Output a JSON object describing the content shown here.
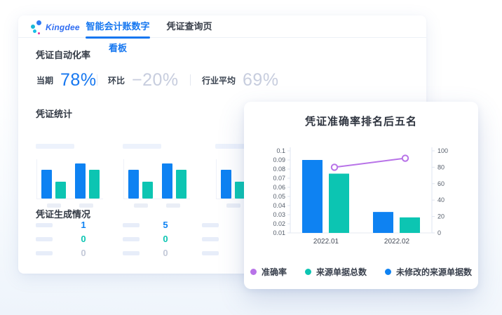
{
  "colors": {
    "blue": "#0e82f2",
    "teal": "#0cc5b2",
    "purple": "#b873e8",
    "muted_value": "#c7cdde",
    "accent": "#1677f0"
  },
  "header": {
    "logo_text": "Kingdee",
    "tabs": [
      {
        "label": "智能会计账数字看板",
        "active": true
      },
      {
        "label": "凭证查询页",
        "active": false
      }
    ]
  },
  "automation": {
    "title": "凭证自动化率",
    "stats": [
      {
        "label": "当期",
        "value": "78%",
        "emphasis": "primary"
      },
      {
        "label": "环比",
        "value": "−20%",
        "emphasis": "muted"
      },
      {
        "label": "行业平均",
        "value": "69%",
        "emphasis": "muted"
      }
    ]
  },
  "voucher_stats": {
    "title": "凭证统计",
    "mini_charts": [
      {
        "bars": [
          41,
          24,
          50,
          41
        ]
      },
      {
        "bars": [
          41,
          24,
          50,
          41
        ]
      },
      {
        "bars": [
          41,
          24,
          50,
          41
        ]
      }
    ]
  },
  "generation": {
    "title": "凭证生成情况",
    "rows": [
      {
        "values": [
          "1",
          "5"
        ],
        "color": "#0e82f2"
      },
      {
        "values": [
          "0",
          "0"
        ],
        "color": "#0cc5b2"
      },
      {
        "values": [
          "0",
          "0"
        ],
        "color": "#c3c9d8"
      }
    ]
  },
  "chart_data": {
    "type": "bar+line",
    "title": "凭证准确率排名后五名",
    "categories": [
      "2022.01",
      "2022.02"
    ],
    "left_axis": {
      "min": 0.01,
      "max": 0.1,
      "labels": [
        "0.1",
        "0.09",
        "0.08",
        "0.07",
        "0.06",
        "0.05",
        "0.04",
        "0.03",
        "0.02",
        "0.01"
      ]
    },
    "right_axis": {
      "min": 0,
      "max": 100,
      "labels": [
        "100",
        "80",
        "60",
        "40",
        "20",
        "0"
      ]
    },
    "series": [
      {
        "name": "准确率",
        "type": "line",
        "axis": "right",
        "color": "#b873e8",
        "values": [
          80,
          91
        ]
      },
      {
        "name": "来源单据总数",
        "type": "bar",
        "axis": "left",
        "color": "#0cc5b2",
        "group": 1,
        "values": [
          0.075,
          0.027
        ]
      },
      {
        "name": "未修改的来源单据数",
        "type": "bar",
        "axis": "left",
        "color": "#0e82f2",
        "group": 0,
        "values": [
          0.09,
          0.033
        ]
      }
    ],
    "grid": false,
    "legend_position": "bottom"
  }
}
